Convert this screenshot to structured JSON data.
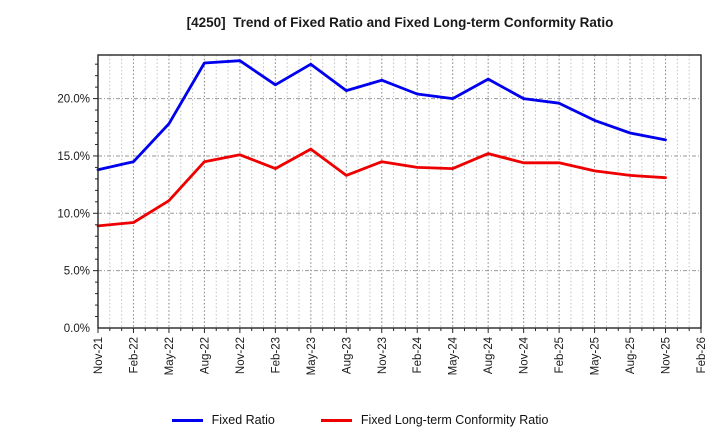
{
  "title": "[4250]  Trend of Fixed Ratio and Fixed Long-term Conformity Ratio",
  "legend": {
    "items": [
      {
        "label": "Fixed Ratio",
        "color": "#0000ee"
      },
      {
        "label": "Fixed Long-term Conformity Ratio",
        "color": "#ee0000"
      }
    ]
  },
  "chart_data": {
    "type": "line",
    "title": "[4250]  Trend of Fixed Ratio and Fixed Long-term Conformity Ratio",
    "x_axis_tick_labels": [
      "Nov-21",
      "Feb-22",
      "May-22",
      "Aug-22",
      "Nov-22",
      "Feb-23",
      "May-23",
      "Aug-23",
      "Nov-23",
      "Feb-24",
      "May-24",
      "Aug-24",
      "Nov-24",
      "Feb-25",
      "May-25",
      "Aug-25",
      "Nov-25",
      "Feb-26"
    ],
    "categories": [
      "Nov-21",
      "Feb-22",
      "May-22",
      "Aug-22",
      "Nov-22",
      "Feb-23",
      "May-23",
      "Aug-23",
      "Nov-23",
      "Feb-24",
      "May-24",
      "Aug-24",
      "Nov-24",
      "Feb-25",
      "May-25",
      "Aug-25",
      "Nov-25"
    ],
    "series": [
      {
        "name": "Fixed Ratio",
        "color": "#0000ee",
        "values": [
          13.8,
          14.5,
          17.8,
          23.1,
          23.3,
          21.2,
          23.0,
          20.7,
          21.6,
          20.4,
          20.0,
          21.7,
          20.0,
          19.6,
          18.1,
          17.0,
          16.4
        ]
      },
      {
        "name": "Fixed Long-term Conformity Ratio",
        "color": "#ee0000",
        "values": [
          8.9,
          9.2,
          11.1,
          14.5,
          15.1,
          13.9,
          15.6,
          13.3,
          14.5,
          14.0,
          13.9,
          15.2,
          14.4,
          14.4,
          13.7,
          13.3,
          13.1
        ]
      }
    ],
    "ylabel": "",
    "xlabel": "",
    "ylim": [
      0,
      23.8
    ],
    "yticks": [
      0,
      5,
      10,
      15,
      20
    ],
    "ytick_labels": [
      "0.0%",
      "5.0%",
      "10.0%",
      "15.0%",
      "20.0%"
    ],
    "grid": "on",
    "minor_x_gridlines": "monthly",
    "legend_position": "bottom",
    "line_width": 2.8
  },
  "style": {
    "grid_major_color": "#999999",
    "grid_minor_color": "#c2c2c2",
    "grid_quarter_color": "#8c8c8c",
    "spine_color": "#262626",
    "tick_text_color": "#1a1a1a"
  }
}
